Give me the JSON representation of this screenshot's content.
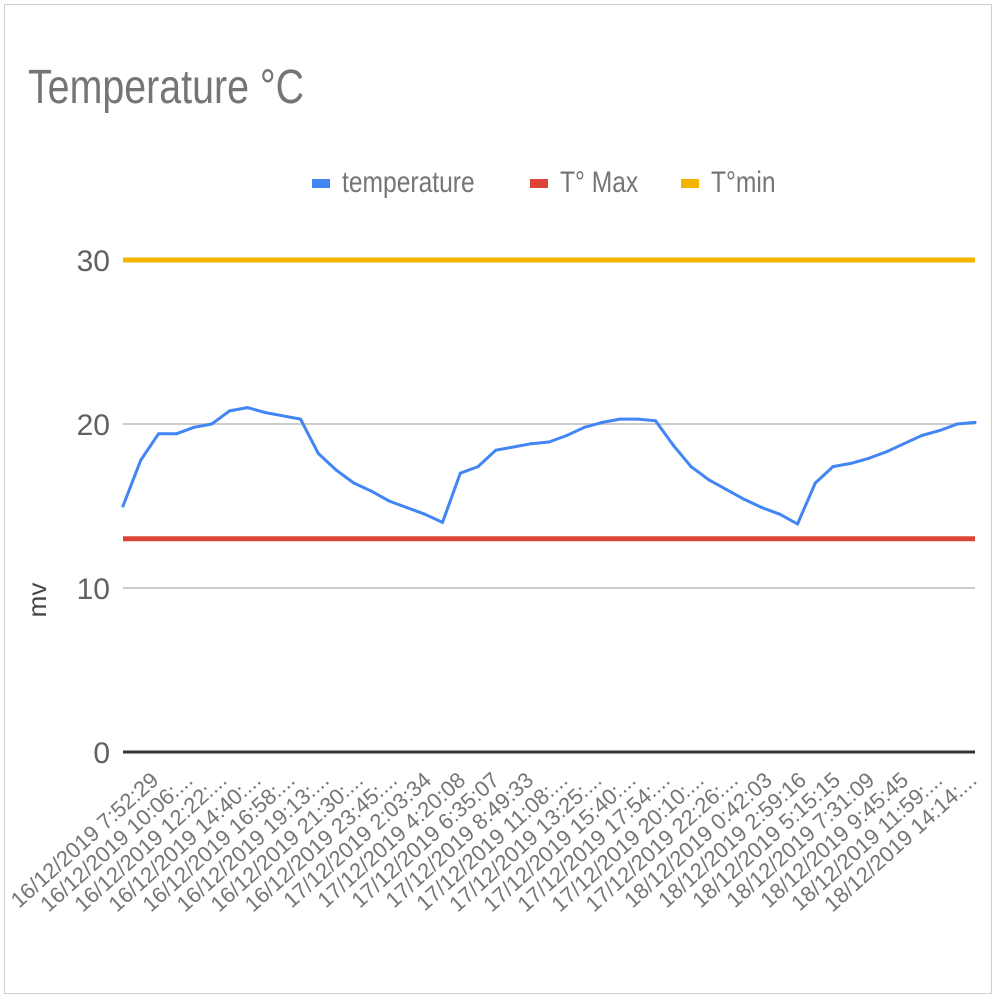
{
  "chart_data": {
    "type": "line",
    "title": "Temperature °C",
    "ylabel": "mv",
    "xlabel": "",
    "ylim": [
      0,
      30
    ],
    "yticks": [
      0,
      10,
      20,
      30
    ],
    "grid": true,
    "legend_position": "top",
    "x_tick_labels": [
      "16/12/2019 7:52:29",
      "16/12/2019 10:06:...",
      "16/12/2019 12:22:...",
      "16/12/2019 14:40:...",
      "16/12/2019 16:58:...",
      "16/12/2019 19:13:...",
      "16/12/2019 21:30:...",
      "16/12/2019 23:45:...",
      "17/12/2019 2:03:34",
      "17/12/2019 4:20:08",
      "17/12/2019 6:35:07",
      "17/12/2019 8:49:33",
      "17/12/2019 11:08:...",
      "17/12/2019 13:25:...",
      "17/12/2019 15:40:...",
      "17/12/2019 17:54:...",
      "17/12/2019 20:10:...",
      "17/12/2019 22:26:...",
      "18/12/2019 0:42:03",
      "18/12/2019 2:59:16",
      "18/12/2019 5:15:15",
      "18/12/2019 7:31:09",
      "18/12/2019 9:45:45",
      "18/12/2019 11:59:...",
      "18/12/2019 14:14:..."
    ],
    "x": [
      "16/12/2019 7:52:29",
      "16/12/2019 8:56",
      "16/12/2019 10:06",
      "16/12/2019 11:14",
      "16/12/2019 12:22",
      "16/12/2019 13:31",
      "16/12/2019 14:40",
      "16/12/2019 15:49",
      "16/12/2019 16:58",
      "16/12/2019 18:05",
      "16/12/2019 19:13",
      "16/12/2019 20:21",
      "16/12/2019 21:30",
      "16/12/2019 22:37",
      "16/12/2019 23:45",
      "17/12/2019 0:54",
      "17/12/2019 2:03:34",
      "17/12/2019 3:11",
      "17/12/2019 4:20:08",
      "17/12/2019 5:27",
      "17/12/2019 6:35:07",
      "17/12/2019 7:42",
      "17/12/2019 8:49:33",
      "17/12/2019 9:58",
      "17/12/2019 11:08",
      "17/12/2019 12:16",
      "17/12/2019 13:25",
      "17/12/2019 14:32",
      "17/12/2019 15:40",
      "17/12/2019 16:47",
      "17/12/2019 17:54",
      "17/12/2019 19:02",
      "17/12/2019 20:10",
      "17/12/2019 21:18",
      "17/12/2019 22:26",
      "17/12/2019 23:34",
      "18/12/2019 0:42:03",
      "18/12/2019 1:50",
      "18/12/2019 2:59:16",
      "18/12/2019 4:07",
      "18/12/2019 5:15:15",
      "18/12/2019 6:23",
      "18/12/2019 7:31:09",
      "18/12/2019 8:38",
      "18/12/2019 9:45:45",
      "18/12/2019 10:52",
      "18/12/2019 11:59",
      "18/12/2019 13:06",
      "18/12/2019 14:14"
    ],
    "series": [
      {
        "name": "temperature",
        "color": "#4285f4",
        "values": [
          15.0,
          17.8,
          19.4,
          19.4,
          19.8,
          20.0,
          20.8,
          21.0,
          20.7,
          20.5,
          20.3,
          18.2,
          17.2,
          16.4,
          15.9,
          15.3,
          14.9,
          14.5,
          14.0,
          17.0,
          17.4,
          18.4,
          18.6,
          18.8,
          18.9,
          19.3,
          19.8,
          20.1,
          20.3,
          20.3,
          20.2,
          18.7,
          17.4,
          16.6,
          16.0,
          15.4,
          14.9,
          14.5,
          13.9,
          16.4,
          17.4,
          17.6,
          17.9,
          18.3,
          18.8,
          19.3,
          19.6,
          20.0,
          20.1
        ]
      },
      {
        "name": "T° Max",
        "color": "#db4437",
        "values": "constant",
        "value": 13
      },
      {
        "name": "T°min",
        "color": "#f4b400",
        "values": "constant",
        "value": 30
      }
    ]
  }
}
